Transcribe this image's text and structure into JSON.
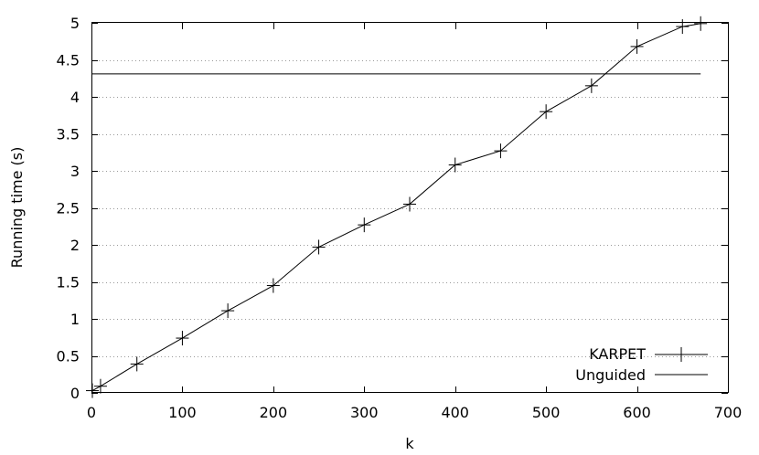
{
  "chart_data": {
    "type": "line",
    "title": "",
    "xlabel": "k",
    "ylabel": "Running time (s)",
    "xlim": [
      0,
      700
    ],
    "ylim": [
      0,
      5
    ],
    "x_ticks": [
      0,
      100,
      200,
      300,
      400,
      500,
      600,
      700
    ],
    "y_ticks": [
      0,
      0.5,
      1,
      1.5,
      2,
      2.5,
      3,
      3.5,
      4,
      4.5,
      5
    ],
    "grid": "horizontal dotted",
    "legend_position": "bottom-right",
    "series": [
      {
        "name": "KARPET",
        "marker": "plus",
        "points": [
          {
            "x": 1,
            "y": 0.03
          },
          {
            "x": 10,
            "y": 0.09
          },
          {
            "x": 50,
            "y": 0.39
          },
          {
            "x": 100,
            "y": 0.74
          },
          {
            "x": 150,
            "y": 1.11
          },
          {
            "x": 200,
            "y": 1.45
          },
          {
            "x": 250,
            "y": 1.97
          },
          {
            "x": 300,
            "y": 2.27
          },
          {
            "x": 350,
            "y": 2.55
          },
          {
            "x": 400,
            "y": 3.08
          },
          {
            "x": 450,
            "y": 3.27
          },
          {
            "x": 500,
            "y": 3.8
          },
          {
            "x": 550,
            "y": 4.15
          },
          {
            "x": 600,
            "y": 4.68
          },
          {
            "x": 650,
            "y": 4.95
          },
          {
            "x": 670,
            "y": 4.99
          }
        ]
      },
      {
        "name": "Unguided",
        "marker": "none",
        "points": [
          {
            "x": 0,
            "y": 4.31
          },
          {
            "x": 670,
            "y": 4.31
          }
        ]
      }
    ]
  }
}
